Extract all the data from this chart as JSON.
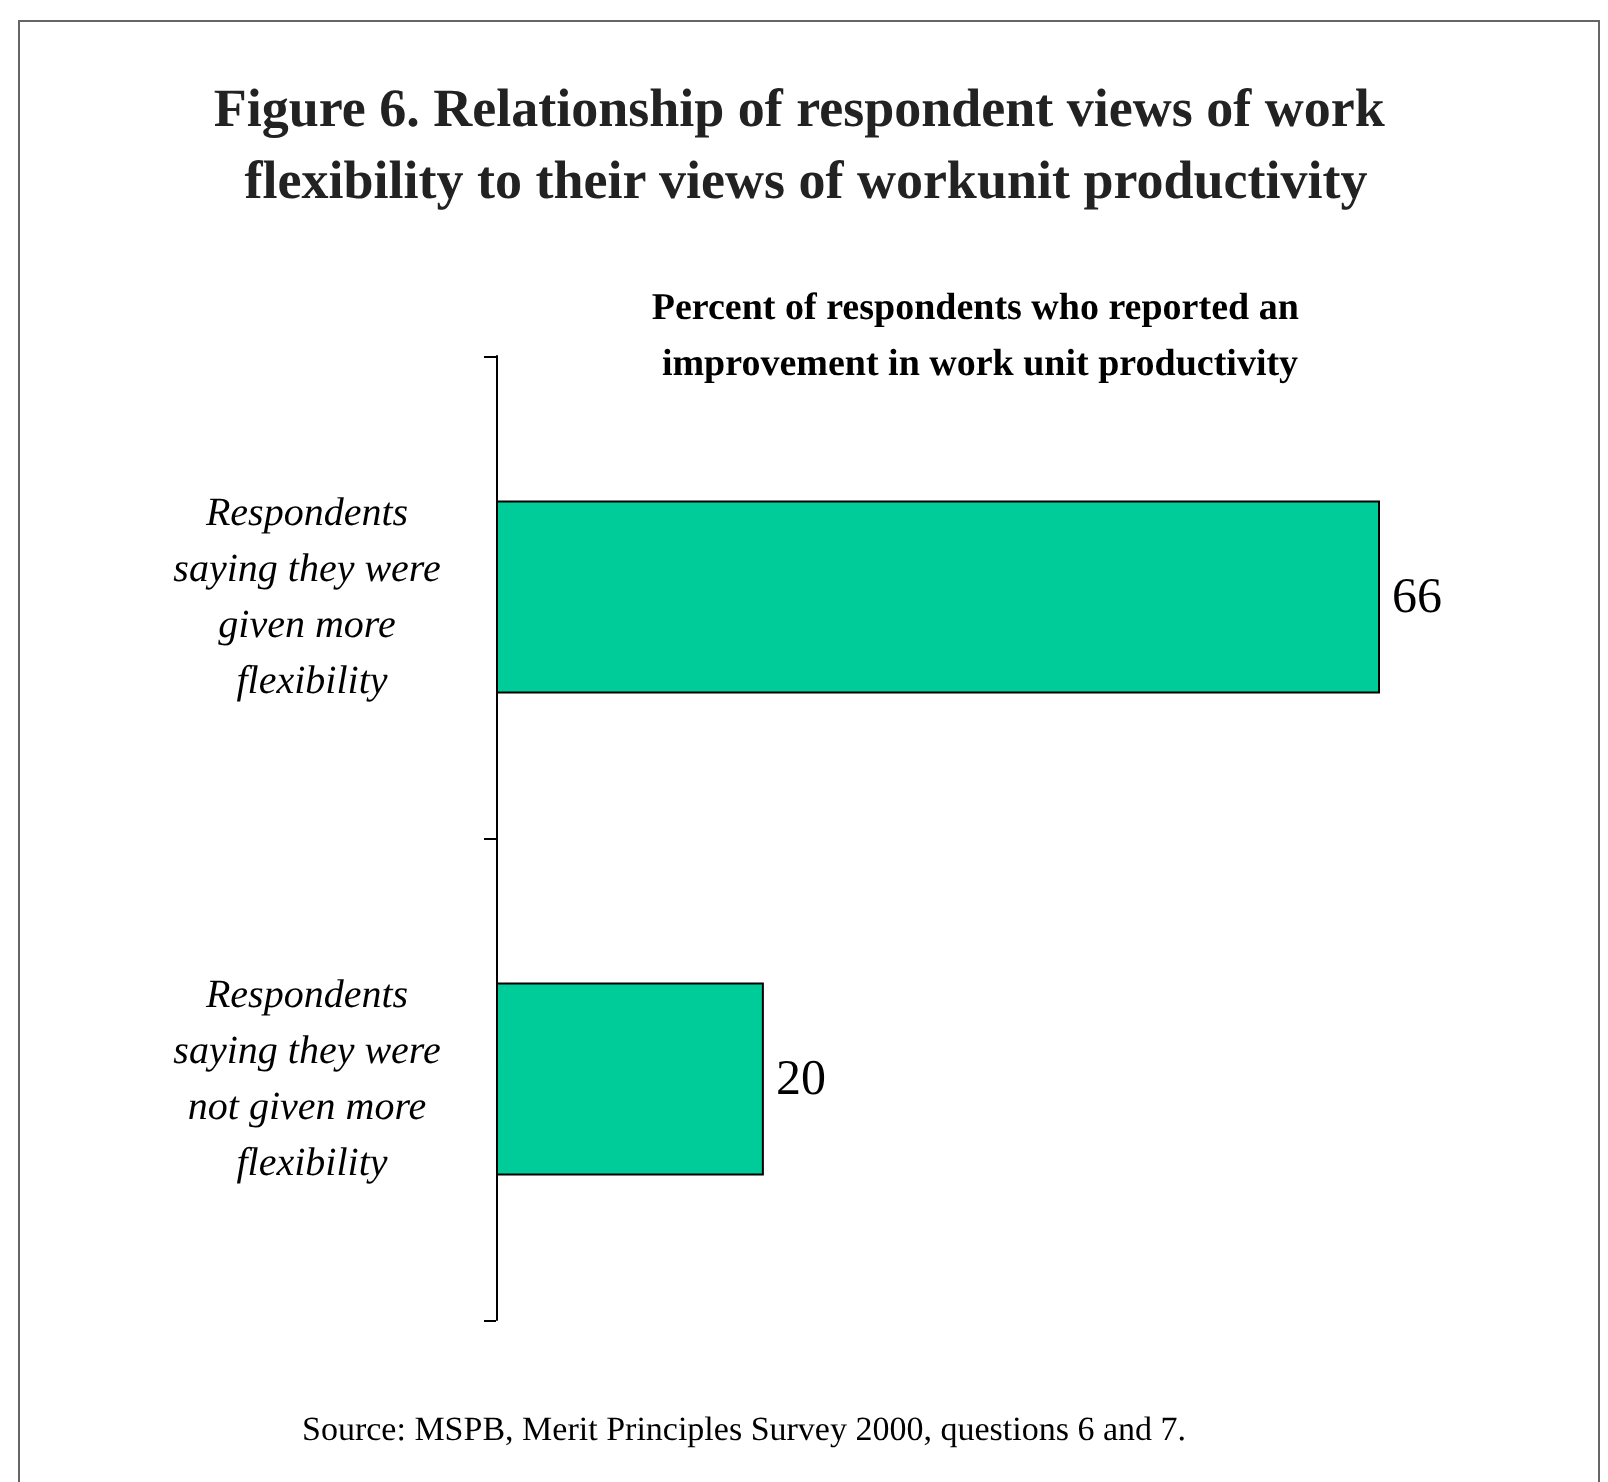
{
  "chart_data": {
    "type": "bar",
    "orientation": "horizontal",
    "title": "Figure 6. Relationship of respondent views of work flexibility to their views of workunit productivity",
    "subtitle": "Percent of respondents who reported an improvement in work unit productivity",
    "categories": [
      "Respondents saying they were given more flexibility",
      "Respondents saying they were not given more flexibility"
    ],
    "values": [
      66,
      20
    ],
    "color": "#00cc99",
    "data_labels": true,
    "tick_labels": "y",
    "annotations": [
      "Source: MSPB, Merit Principles Survey 2000, questions 6 and 7."
    ]
  }
}
